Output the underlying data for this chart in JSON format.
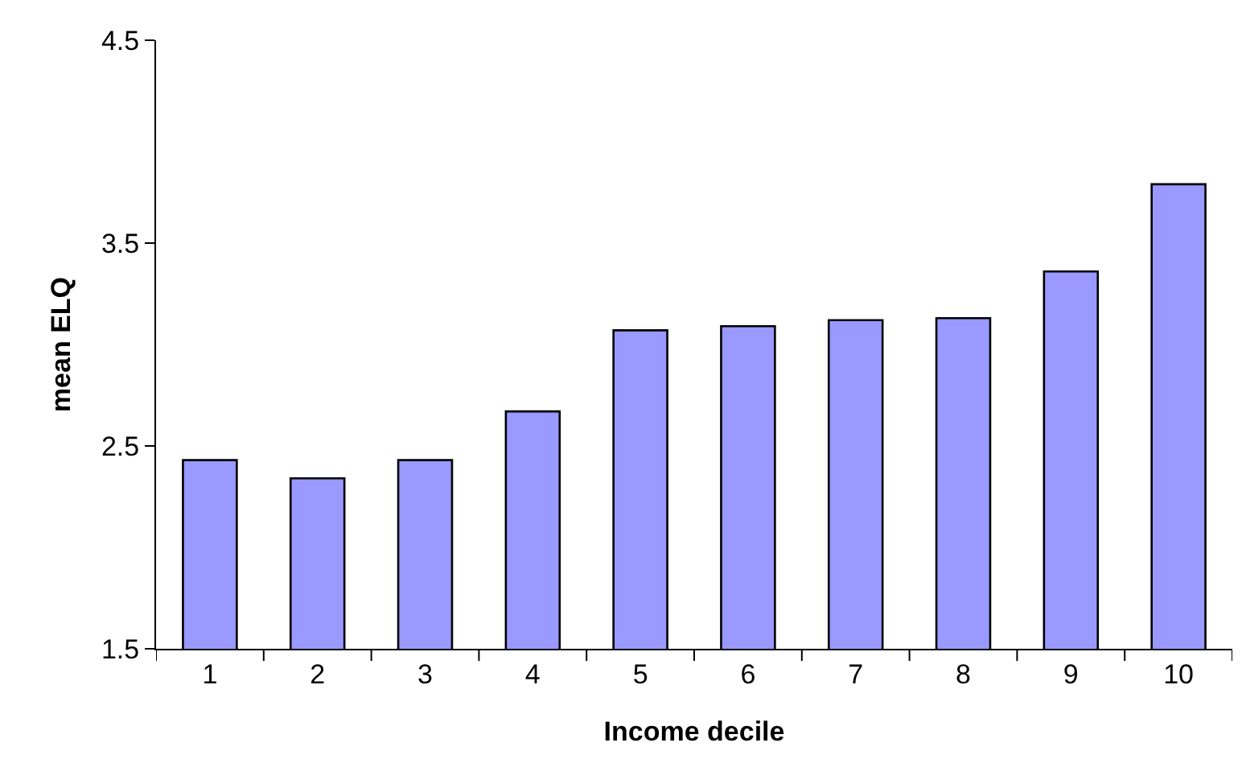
{
  "chart_data": {
    "type": "bar",
    "xlabel": "Income decile",
    "ylabel": "mean ELQ",
    "categories": [
      "1",
      "2",
      "3",
      "4",
      "5",
      "6",
      "7",
      "8",
      "9",
      "10"
    ],
    "values": [
      2.43,
      2.34,
      2.43,
      2.67,
      3.07,
      3.09,
      3.12,
      3.13,
      3.36,
      3.79
    ],
    "color": "#9999ff",
    "ylim": [
      1.5,
      4.5
    ],
    "yticks": [
      1.5,
      2.5,
      3.5,
      4.5
    ]
  }
}
